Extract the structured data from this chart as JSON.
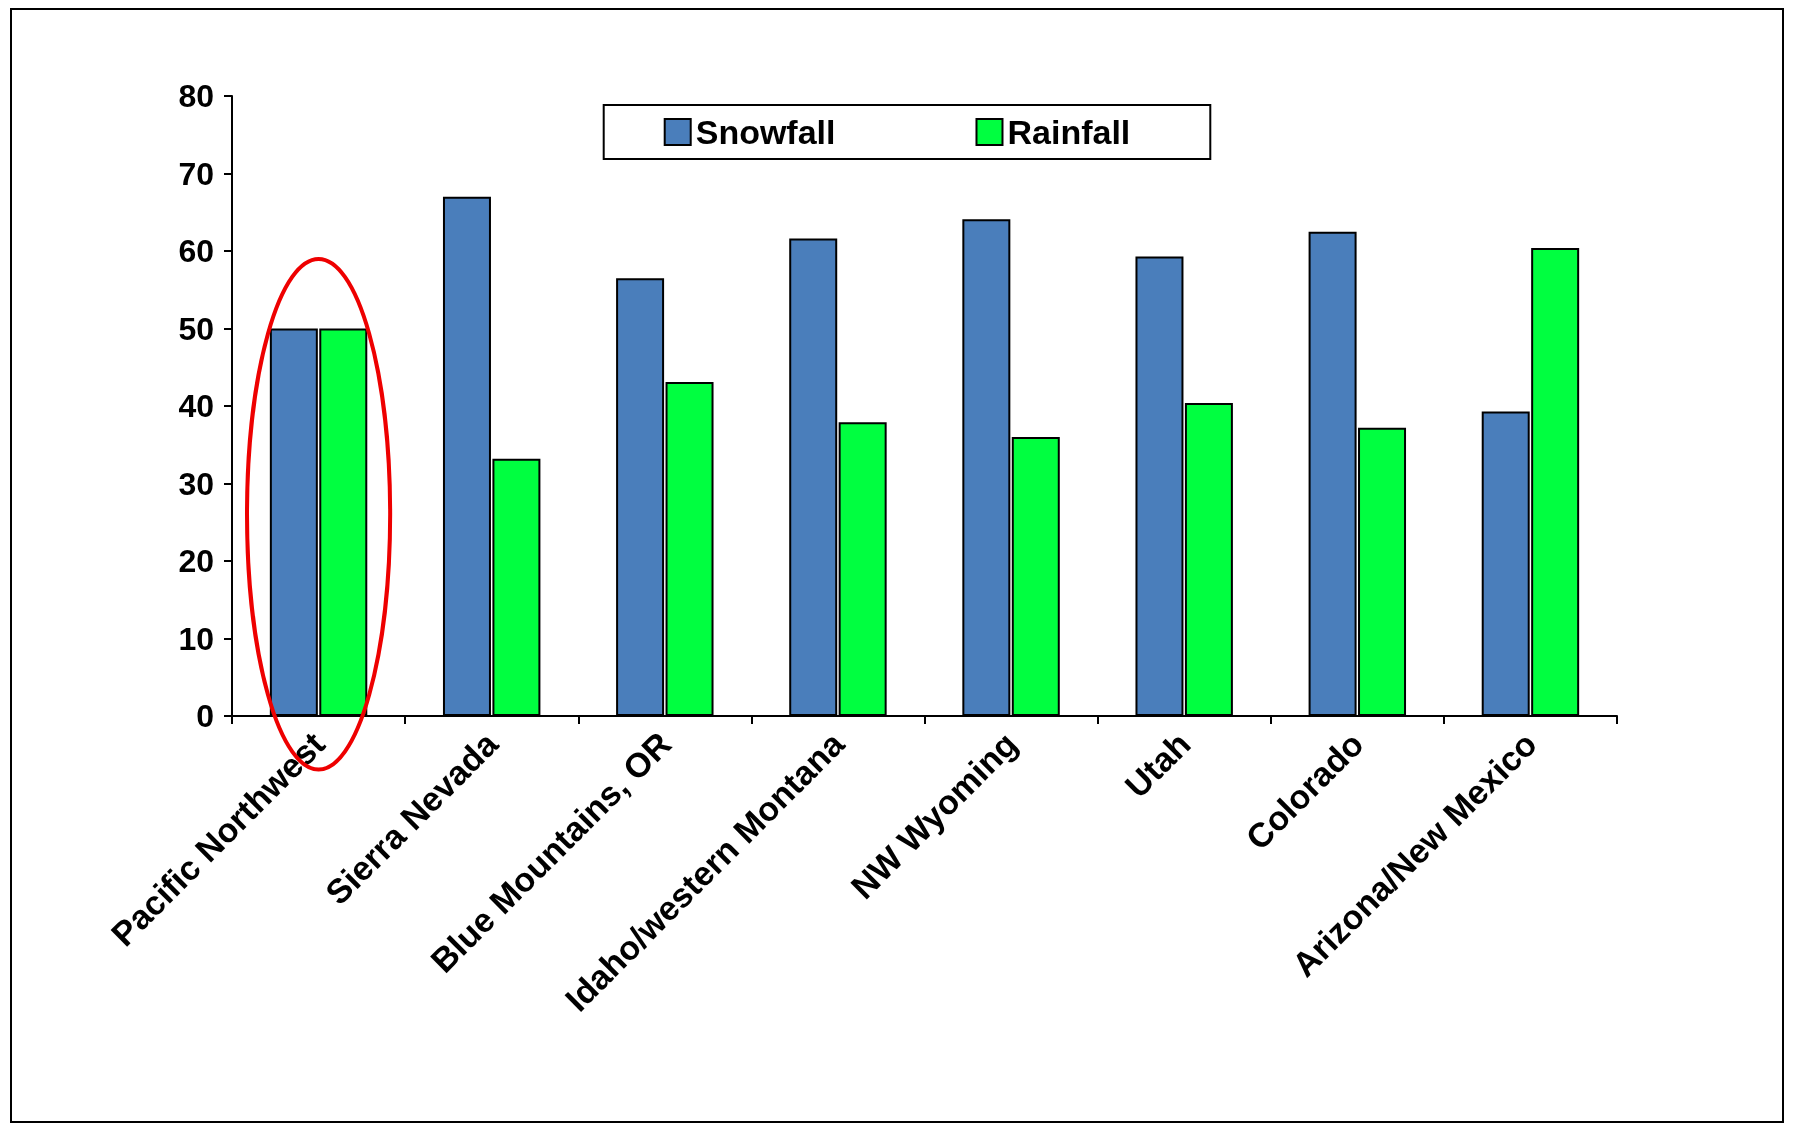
{
  "chart_data": {
    "type": "bar",
    "categories": [
      "Pacific Northwest",
      "Sierra Nevada",
      "Blue Mountains, OR",
      "Idaho/western Montana",
      "NW Wyoming",
      "Utah",
      "Colorado",
      "Arizona/New Mexico"
    ],
    "series": [
      {
        "name": "Snowfall",
        "color": "#4a7ebb",
        "values": [
          50,
          67,
          56.5,
          61.6,
          64.1,
          59.3,
          62.5,
          39.3
        ]
      },
      {
        "name": "Rainfall",
        "color": "#00ff40",
        "values": [
          50,
          33.2,
          43.1,
          37.9,
          36,
          40.4,
          37.2,
          60.4
        ]
      }
    ],
    "ylim": [
      0,
      80
    ],
    "yticks": [
      0,
      10,
      20,
      30,
      40,
      50,
      60,
      70,
      80
    ],
    "grid": false,
    "legend": "top"
  }
}
